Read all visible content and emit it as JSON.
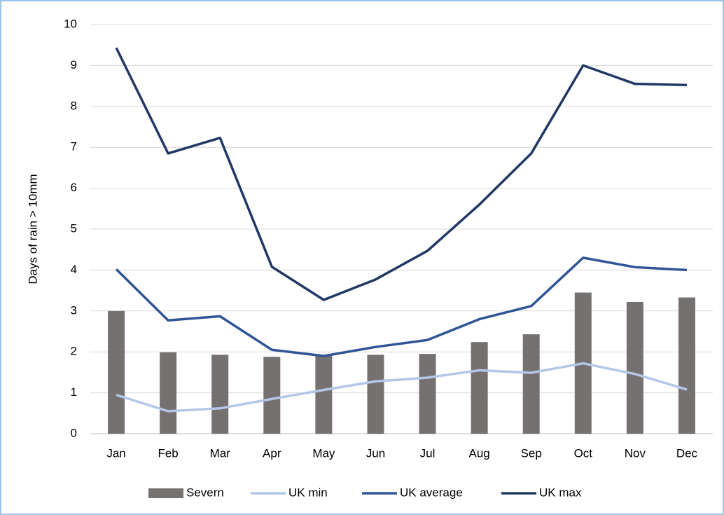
{
  "chart_data": {
    "type": "bar-line",
    "y_label": "Days of rain > 10mm",
    "categories": [
      "Jan",
      "Feb",
      "Mar",
      "Apr",
      "May",
      "Jun",
      "Jul",
      "Aug",
      "Sep",
      "Oct",
      "Nov",
      "Dec"
    ],
    "series": [
      {
        "name": "Severn",
        "type": "bar",
        "color": "#767171",
        "values": [
          3.0,
          1.99,
          1.93,
          1.88,
          1.92,
          1.93,
          1.95,
          2.24,
          2.43,
          3.45,
          3.22,
          3.33
        ]
      },
      {
        "name": "UK min",
        "type": "line",
        "color": "#b4c7e7",
        "values": [
          0.95,
          0.55,
          0.62,
          0.85,
          1.07,
          1.28,
          1.37,
          1.55,
          1.49,
          1.72,
          1.46,
          1.08
        ]
      },
      {
        "name": "UK average",
        "type": "line",
        "color": "#2f5597",
        "values": [
          4.02,
          2.77,
          2.87,
          2.05,
          1.9,
          2.12,
          2.29,
          2.8,
          3.12,
          4.3,
          4.07,
          4.0
        ]
      },
      {
        "name": "UK max",
        "type": "line",
        "color": "#203864",
        "values": [
          9.43,
          6.85,
          7.23,
          4.08,
          3.27,
          3.77,
          4.47,
          5.6,
          6.85,
          9.0,
          8.55,
          8.52
        ]
      }
    ],
    "ylim": [
      0,
      10
    ],
    "yticks": [
      0,
      1,
      2,
      3,
      4,
      5,
      6,
      7,
      8,
      9,
      10
    ],
    "grid": true
  }
}
